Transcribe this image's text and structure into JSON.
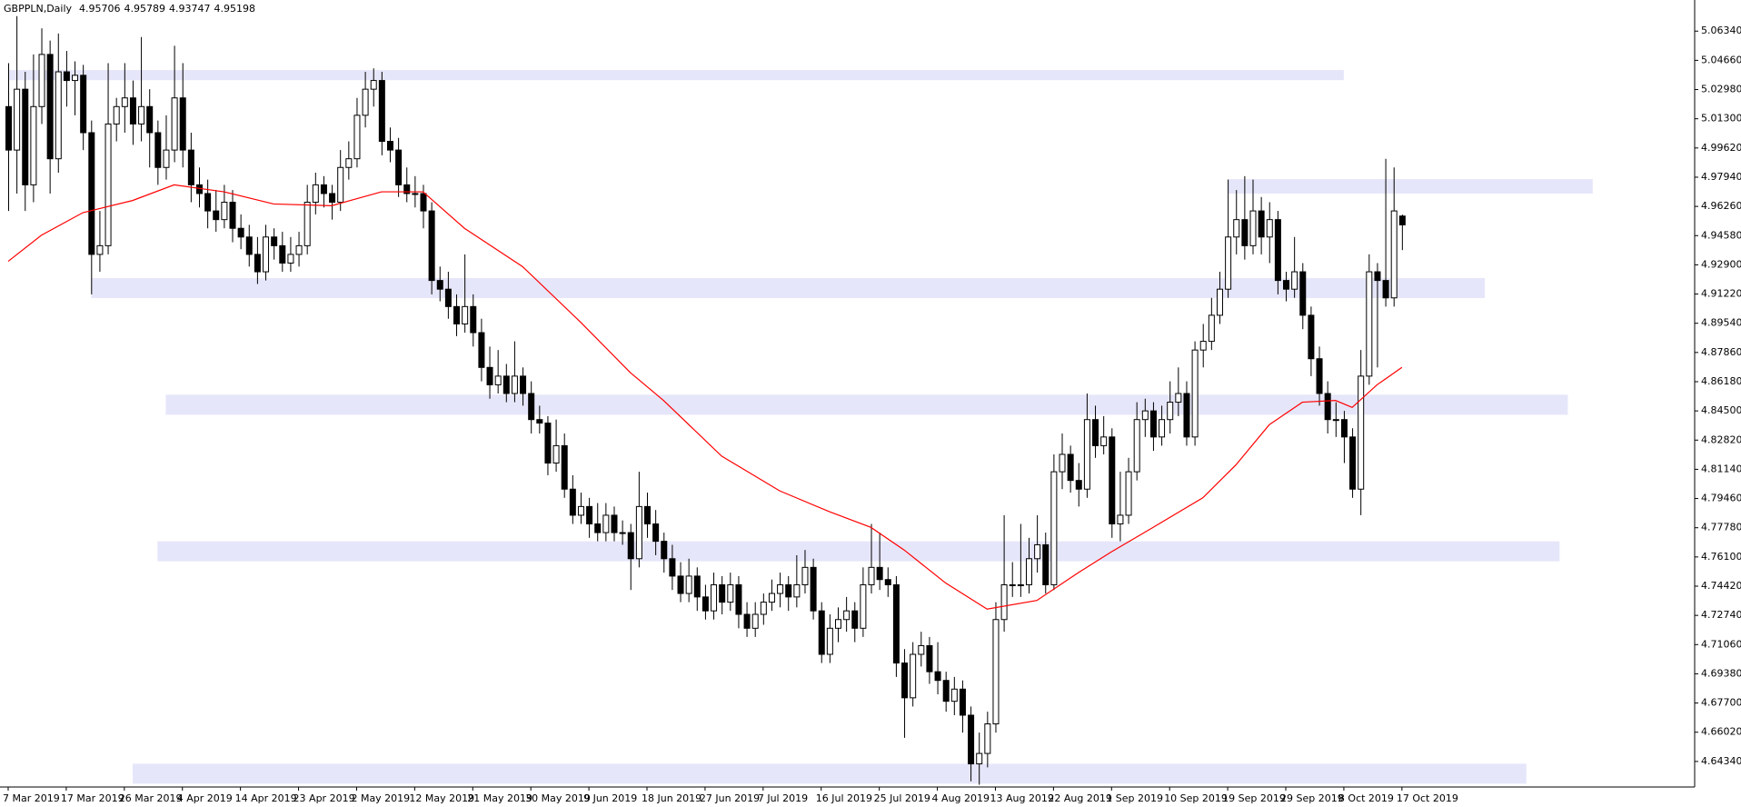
{
  "chart_data": {
    "type": "candlestick",
    "title": "GBPPLN,Daily",
    "categories": [
      "7 Mar 2019",
      null,
      null,
      null,
      null,
      null,
      null,
      "17 Mar 2019",
      null,
      null,
      null,
      null,
      null,
      null,
      "26 Mar 2019",
      null,
      null,
      null,
      null,
      null,
      null,
      "4 Apr 2019",
      null,
      null,
      null,
      null,
      null,
      null,
      "14 Apr 2019",
      null,
      null,
      null,
      null,
      null,
      null,
      "23 Apr 2019",
      null,
      null,
      null,
      null,
      null,
      null,
      "2 May 2019",
      null,
      null,
      null,
      null,
      null,
      null,
      "12 May 2019",
      null,
      null,
      null,
      null,
      null,
      null,
      "21 May 2019",
      null,
      null,
      null,
      null,
      null,
      null,
      "30 May 2019",
      null,
      null,
      null,
      null,
      null,
      null,
      "9 Jun 2019",
      null,
      null,
      null,
      null,
      null,
      null,
      "18 Jun 2019",
      null,
      null,
      null,
      null,
      null,
      null,
      "27 Jun 2019",
      null,
      null,
      null,
      null,
      null,
      null,
      "7 Jul 2019",
      null,
      null,
      null,
      null,
      null,
      null,
      "16 Jul 2019",
      null,
      null,
      null,
      null,
      null,
      null,
      "25 Jul 2019",
      null,
      null,
      null,
      null,
      null,
      null,
      "4 Aug 2019",
      null,
      null,
      null,
      null,
      null,
      null,
      "13 Aug 2019",
      null,
      null,
      null,
      null,
      null,
      null,
      "22 Aug 2019",
      null,
      null,
      null,
      null,
      null,
      null,
      "1 Sep 2019",
      null,
      null,
      null,
      null,
      null,
      null,
      "10 Sep 2019",
      null,
      null,
      null,
      null,
      null,
      null,
      "19 Sep 2019",
      null,
      null,
      null,
      null,
      null,
      null,
      "29 Sep 2019",
      null,
      null,
      null,
      null,
      null,
      null,
      "8 Oct 2019",
      null,
      null,
      null,
      null,
      null,
      null,
      "17 Oct 2019"
    ],
    "candles": [
      [
        5.02,
        5.045,
        4.96,
        4.995
      ],
      [
        4.995,
        5.072,
        4.97,
        5.03
      ],
      [
        5.03,
        5.04,
        4.96,
        4.975
      ],
      [
        4.975,
        5.05,
        4.965,
        5.02
      ],
      [
        5.02,
        5.065,
        5.01,
        5.05
      ],
      [
        5.05,
        5.058,
        4.97,
        4.99
      ],
      [
        4.99,
        5.062,
        4.982,
        5.04
      ],
      [
        5.04,
        5.052,
        5.02,
        5.035
      ],
      [
        5.035,
        5.046,
        5.015,
        5.038
      ],
      [
        5.038,
        5.044,
        4.995,
        5.005
      ],
      [
        5.005,
        5.012,
        4.912,
        4.935
      ],
      [
        4.935,
        4.96,
        4.925,
        4.94
      ],
      [
        4.94,
        5.045,
        4.935,
        5.01
      ],
      [
        5.01,
        5.025,
        5.0,
        5.02
      ],
      [
        5.02,
        5.045,
        5.005,
        5.025
      ],
      [
        5.025,
        5.035,
        4.998,
        5.01
      ],
      [
        5.01,
        5.06,
        5.0,
        5.02
      ],
      [
        5.02,
        5.03,
        4.985,
        5.005
      ],
      [
        5.005,
        5.012,
        4.975,
        4.985
      ],
      [
        4.985,
        5.015,
        4.978,
        4.995
      ],
      [
        4.995,
        5.055,
        4.988,
        5.025
      ],
      [
        5.025,
        5.045,
        4.985,
        4.995
      ],
      [
        4.995,
        5.005,
        4.965,
        4.975
      ],
      [
        4.975,
        4.985,
        4.962,
        4.97
      ],
      [
        4.97,
        4.978,
        4.95,
        4.96
      ],
      [
        4.96,
        4.972,
        4.948,
        4.955
      ],
      [
        4.955,
        4.975,
        4.95,
        4.965
      ],
      [
        4.965,
        4.972,
        4.942,
        4.95
      ],
      [
        4.95,
        4.958,
        4.938,
        4.945
      ],
      [
        4.945,
        4.952,
        4.928,
        4.935
      ],
      [
        4.935,
        4.945,
        4.918,
        4.925
      ],
      [
        4.925,
        4.952,
        4.92,
        4.945
      ],
      [
        4.945,
        4.95,
        4.932,
        4.94
      ],
      [
        4.94,
        4.948,
        4.925,
        4.93
      ],
      [
        4.93,
        4.945,
        4.925,
        4.935
      ],
      [
        4.935,
        4.948,
        4.928,
        4.94
      ],
      [
        4.94,
        4.975,
        4.935,
        4.965
      ],
      [
        4.965,
        4.982,
        4.958,
        4.975
      ],
      [
        4.975,
        4.98,
        4.962,
        4.97
      ],
      [
        4.97,
        4.975,
        4.955,
        4.965
      ],
      [
        4.965,
        4.995,
        4.96,
        4.985
      ],
      [
        4.985,
        5.0,
        4.978,
        4.99
      ],
      [
        4.99,
        5.025,
        4.985,
        5.015
      ],
      [
        5.015,
        5.04,
        5.008,
        5.03
      ],
      [
        5.03,
        5.042,
        5.02,
        5.035
      ],
      [
        5.035,
        5.04,
        4.992,
        5.0
      ],
      [
        5.0,
        5.008,
        4.988,
        4.995
      ],
      [
        4.995,
        5.002,
        4.968,
        4.975
      ],
      [
        4.975,
        4.985,
        4.965,
        4.97
      ],
      [
        4.97,
        4.98,
        4.962,
        4.97
      ],
      [
        4.97,
        4.975,
        4.95,
        4.96
      ],
      [
        4.96,
        4.965,
        4.912,
        4.92
      ],
      [
        4.92,
        4.928,
        4.908,
        4.915
      ],
      [
        4.915,
        4.925,
        4.898,
        4.905
      ],
      [
        4.905,
        4.912,
        4.888,
        4.895
      ],
      [
        4.895,
        4.935,
        4.89,
        4.905
      ],
      [
        4.905,
        4.912,
        4.882,
        4.89
      ],
      [
        4.89,
        4.898,
        4.862,
        4.87
      ],
      [
        4.87,
        4.882,
        4.852,
        4.86
      ],
      [
        4.86,
        4.88,
        4.855,
        4.865
      ],
      [
        4.865,
        4.872,
        4.85,
        4.855
      ],
      [
        4.855,
        4.885,
        4.85,
        4.865
      ],
      [
        4.865,
        4.87,
        4.848,
        4.855
      ],
      [
        4.855,
        4.862,
        4.832,
        4.84
      ],
      [
        4.84,
        4.848,
        4.832,
        4.838
      ],
      [
        4.838,
        4.842,
        4.808,
        4.815
      ],
      [
        4.815,
        4.84,
        4.81,
        4.825
      ],
      [
        4.825,
        4.832,
        4.795,
        4.8
      ],
      [
        4.8,
        4.808,
        4.78,
        4.785
      ],
      [
        4.785,
        4.798,
        4.78,
        4.79
      ],
      [
        4.79,
        4.795,
        4.772,
        4.78
      ],
      [
        4.78,
        4.792,
        4.77,
        4.775
      ],
      [
        4.775,
        4.792,
        4.77,
        4.785
      ],
      [
        4.785,
        4.79,
        4.77,
        4.775
      ],
      [
        4.775,
        4.782,
        4.768,
        4.775
      ],
      [
        4.775,
        4.78,
        4.742,
        4.76
      ],
      [
        4.76,
        4.81,
        4.755,
        4.79
      ],
      [
        4.79,
        4.798,
        4.772,
        4.78
      ],
      [
        4.78,
        4.788,
        4.762,
        4.77
      ],
      [
        4.77,
        4.775,
        4.752,
        4.76
      ],
      [
        4.76,
        4.768,
        4.742,
        4.75
      ],
      [
        4.75,
        4.758,
        4.735,
        4.74
      ],
      [
        4.74,
        4.76,
        4.735,
        4.75
      ],
      [
        4.75,
        4.755,
        4.73,
        4.738
      ],
      [
        4.738,
        4.745,
        4.725,
        4.73
      ],
      [
        4.73,
        4.752,
        4.725,
        4.745
      ],
      [
        4.745,
        4.75,
        4.728,
        4.735
      ],
      [
        4.735,
        4.752,
        4.73,
        4.745
      ],
      [
        4.745,
        4.75,
        4.72,
        4.728
      ],
      [
        4.728,
        4.735,
        4.715,
        4.72
      ],
      [
        4.72,
        4.735,
        4.715,
        4.728
      ],
      [
        4.728,
        4.74,
        4.722,
        4.735
      ],
      [
        4.735,
        4.748,
        4.73,
        4.74
      ],
      [
        4.74,
        4.752,
        4.732,
        4.745
      ],
      [
        4.745,
        4.75,
        4.73,
        4.738
      ],
      [
        4.738,
        4.762,
        4.732,
        4.745
      ],
      [
        4.745,
        4.765,
        4.74,
        4.755
      ],
      [
        4.755,
        4.76,
        4.725,
        4.73
      ],
      [
        4.73,
        4.735,
        4.7,
        4.705
      ],
      [
        4.705,
        4.728,
        4.7,
        4.72
      ],
      [
        4.72,
        4.732,
        4.712,
        4.725
      ],
      [
        4.725,
        4.738,
        4.718,
        4.73
      ],
      [
        4.73,
        4.735,
        4.712,
        4.72
      ],
      [
        4.72,
        4.755,
        4.715,
        4.745
      ],
      [
        4.745,
        4.78,
        4.74,
        4.755
      ],
      [
        4.755,
        4.775,
        4.742,
        4.748
      ],
      [
        4.748,
        4.755,
        4.738,
        4.745
      ],
      [
        4.745,
        4.75,
        4.692,
        4.7
      ],
      [
        4.7,
        4.708,
        4.657,
        4.68
      ],
      [
        4.68,
        4.712,
        4.675,
        4.705
      ],
      [
        4.705,
        4.718,
        4.698,
        4.71
      ],
      [
        4.71,
        4.715,
        4.688,
        4.695
      ],
      [
        4.695,
        4.712,
        4.682,
        4.69
      ],
      [
        4.69,
        4.695,
        4.672,
        4.678
      ],
      [
        4.678,
        4.692,
        4.67,
        4.685
      ],
      [
        4.685,
        4.69,
        4.66,
        4.67
      ],
      [
        4.67,
        4.675,
        4.632,
        4.642
      ],
      [
        4.642,
        4.66,
        4.63,
        4.648
      ],
      [
        4.648,
        4.672,
        4.64,
        4.665
      ],
      [
        4.665,
        4.735,
        4.66,
        4.725
      ],
      [
        4.725,
        4.785,
        4.718,
        4.745
      ],
      [
        4.745,
        4.758,
        4.738,
        4.745
      ],
      [
        4.745,
        4.78,
        4.738,
        4.745
      ],
      [
        4.745,
        4.772,
        4.74,
        4.76
      ],
      [
        4.76,
        4.785,
        4.752,
        4.768
      ],
      [
        4.768,
        4.775,
        4.74,
        4.745
      ],
      [
        4.745,
        4.82,
        4.742,
        4.81
      ],
      [
        4.81,
        4.832,
        4.8,
        4.82
      ],
      [
        4.82,
        4.825,
        4.798,
        4.805
      ],
      [
        4.805,
        4.815,
        4.79,
        4.8
      ],
      [
        4.8,
        4.855,
        4.795,
        4.84
      ],
      [
        4.84,
        4.848,
        4.818,
        4.825
      ],
      [
        4.825,
        4.842,
        4.82,
        4.83
      ],
      [
        4.83,
        4.835,
        4.772,
        4.78
      ],
      [
        4.78,
        4.81,
        4.77,
        4.785
      ],
      [
        4.785,
        4.818,
        4.78,
        4.81
      ],
      [
        4.81,
        4.85,
        4.805,
        4.84
      ],
      [
        4.84,
        4.852,
        4.83,
        4.845
      ],
      [
        4.845,
        4.85,
        4.822,
        4.83
      ],
      [
        4.83,
        4.848,
        4.825,
        4.84
      ],
      [
        4.84,
        4.862,
        4.832,
        4.85
      ],
      [
        4.85,
        4.87,
        4.842,
        4.855
      ],
      [
        4.855,
        4.862,
        4.825,
        4.83
      ],
      [
        4.83,
        4.885,
        4.825,
        4.88
      ],
      [
        4.88,
        4.895,
        4.87,
        4.885
      ],
      [
        4.885,
        4.91,
        4.88,
        4.9
      ],
      [
        4.9,
        4.925,
        4.895,
        4.915
      ],
      [
        4.915,
        4.978,
        4.91,
        4.945
      ],
      [
        4.945,
        4.972,
        4.935,
        4.955
      ],
      [
        4.955,
        4.98,
        4.932,
        4.94
      ],
      [
        4.94,
        4.978,
        4.935,
        4.96
      ],
      [
        4.96,
        4.968,
        4.935,
        4.945
      ],
      [
        4.945,
        4.965,
        4.93,
        4.955
      ],
      [
        4.955,
        4.96,
        4.912,
        4.92
      ],
      [
        4.92,
        4.925,
        4.908,
        4.915
      ],
      [
        4.915,
        4.945,
        4.91,
        4.925
      ],
      [
        4.925,
        4.93,
        4.892,
        4.9
      ],
      [
        4.9,
        4.905,
        4.865,
        4.875
      ],
      [
        4.875,
        4.882,
        4.848,
        4.855
      ],
      [
        4.855,
        4.862,
        4.832,
        4.84
      ],
      [
        4.84,
        4.85,
        4.83,
        4.84
      ],
      [
        4.84,
        4.845,
        4.815,
        4.83
      ],
      [
        4.83,
        4.835,
        4.795,
        4.8
      ],
      [
        4.8,
        4.88,
        4.785,
        4.865
      ],
      [
        4.865,
        4.935,
        4.86,
        4.925
      ],
      [
        4.925,
        4.93,
        4.87,
        4.92
      ],
      [
        4.92,
        4.99,
        4.905,
        4.91
      ],
      [
        4.91,
        4.985,
        4.905,
        4.96
      ],
      [
        4.95706,
        4.95789,
        4.93747,
        4.95198
      ]
    ],
    "ma": {
      "color": "#ff0000",
      "x": [
        0,
        4,
        9,
        15,
        20,
        26,
        32,
        39,
        45,
        50,
        55,
        62,
        69,
        75,
        79,
        86,
        93,
        99,
        104,
        108,
        113,
        118,
        124,
        129,
        133,
        138,
        144,
        148,
        152,
        156,
        160,
        162,
        165,
        168
      ],
      "values": [
        4.931,
        4.946,
        4.959,
        4.966,
        4.975,
        4.971,
        4.964,
        4.963,
        4.971,
        4.971,
        4.95,
        4.928,
        4.896,
        4.867,
        4.851,
        4.819,
        4.799,
        4.787,
        4.778,
        4.765,
        4.746,
        4.731,
        4.736,
        4.752,
        4.764,
        4.778,
        4.795,
        4.814,
        4.837,
        4.85,
        4.851,
        4.847,
        4.86,
        4.87
      ]
    },
    "zones": {
      "color": "#e6e6fa",
      "items": [
        {
          "start": 0,
          "end": 161,
          "low": 5.0352,
          "high": 5.041
        },
        {
          "start": 147,
          "end": 191,
          "low": 4.97,
          "high": 4.9783
        },
        {
          "start": 10,
          "end": 178,
          "low": 4.9099,
          "high": 4.9214
        },
        {
          "start": 19,
          "end": 188,
          "low": 4.8428,
          "high": 4.8543
        },
        {
          "start": 18,
          "end": 187,
          "low": 4.7585,
          "high": 4.77
        },
        {
          "start": 15,
          "end": 183,
          "low": 4.6306,
          "high": 4.6421
        }
      ]
    },
    "ylim": [
      4.6287,
      5.0813
    ],
    "yticks": [
      {
        "value": 5.0634,
        "label": "5.06340"
      },
      {
        "value": 5.0466,
        "label": "5.04660"
      },
      {
        "value": 5.0298,
        "label": "5.02980"
      },
      {
        "value": 5.013,
        "label": "5.01300"
      },
      {
        "value": 4.9962,
        "label": "4.99620"
      },
      {
        "value": 4.9794,
        "label": "4.97940"
      },
      {
        "value": 4.9626,
        "label": "4.96260"
      },
      {
        "value": 4.9458,
        "label": "4.94580"
      },
      {
        "value": 4.929,
        "label": "4.92900"
      },
      {
        "value": 4.9122,
        "label": "4.91220"
      },
      {
        "value": 4.8954,
        "label": "4.89540"
      },
      {
        "value": 4.8786,
        "label": "4.87860"
      },
      {
        "value": 4.8618,
        "label": "4.86180"
      },
      {
        "value": 4.845,
        "label": "4.84500"
      },
      {
        "value": 4.8282,
        "label": "4.82820"
      },
      {
        "value": 4.8114,
        "label": "4.81140"
      },
      {
        "value": 4.7946,
        "label": "4.79460"
      },
      {
        "value": 4.7778,
        "label": "4.77780"
      },
      {
        "value": 4.761,
        "label": "4.76100"
      },
      {
        "value": 4.7442,
        "label": "4.74420"
      },
      {
        "value": 4.7274,
        "label": "4.72740"
      },
      {
        "value": 4.7106,
        "label": "4.71060"
      },
      {
        "value": 4.6938,
        "label": "4.69380"
      },
      {
        "value": 4.677,
        "label": "4.67700"
      },
      {
        "value": 4.6602,
        "label": "4.66020"
      },
      {
        "value": 4.6434,
        "label": "4.64340"
      }
    ],
    "bull_color": "#ffffff",
    "bear_color": "#000000"
  }
}
